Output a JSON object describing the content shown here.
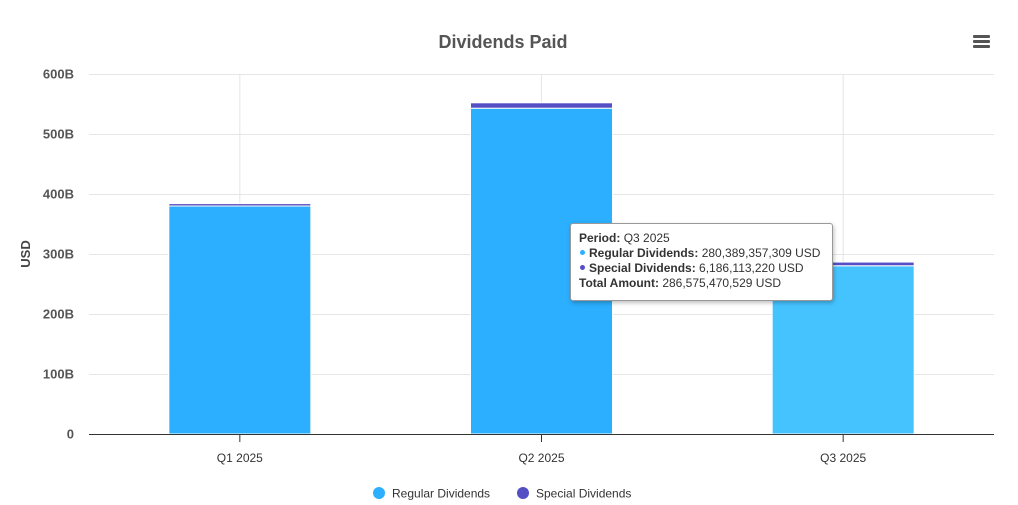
{
  "chart_data": {
    "type": "bar",
    "stacked": true,
    "title": "Dividends Paid",
    "ylabel": "USD",
    "xlabel": "",
    "ylim": [
      0,
      600000000000
    ],
    "yticks": [
      "0",
      "100B",
      "200B",
      "300B",
      "400B",
      "500B",
      "600B"
    ],
    "categories": [
      "Q1 2025",
      "Q2 2025",
      "Q3 2025"
    ],
    "series": [
      {
        "name": "Regular Dividends",
        "color": "#2caffe",
        "values": [
          380000000000,
          543000000000,
          280389357309
        ]
      },
      {
        "name": "Special Dividends",
        "color": "#544fc5",
        "values": [
          4000000000,
          9000000000,
          6186113220
        ]
      }
    ],
    "highlighted_category": "Q3 2025",
    "highlight_color": "#45c3ff",
    "grid": true,
    "legend_position": "bottom-center"
  },
  "tooltip": {
    "period_label": "Period:",
    "period_value": "Q3 2025",
    "regular_label": "Regular Dividends:",
    "regular_value": "280,389,357,309 USD",
    "special_label": "Special Dividends:",
    "special_value": "6,186,113,220 USD",
    "total_label": "Total Amount:",
    "total_value": "286,575,470,529 USD"
  },
  "menu_icon": "hamburger-menu-icon"
}
